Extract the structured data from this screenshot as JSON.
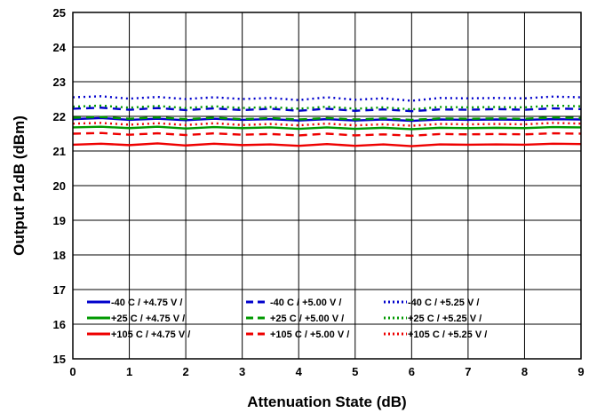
{
  "chart_data": {
    "type": "line",
    "title": "",
    "xlabel": "Attenuation State (dB)",
    "ylabel": "Output P1dB (dBm)",
    "xlim": [
      0,
      9
    ],
    "ylim": [
      15,
      25
    ],
    "x_ticks": [
      "0",
      "1",
      "2",
      "3",
      "4",
      "5",
      "6",
      "7",
      "8",
      "9"
    ],
    "y_ticks": [
      "15",
      "16",
      "17",
      "18",
      "19",
      "20",
      "21",
      "22",
      "23",
      "24",
      "25"
    ],
    "grid": true,
    "legend_position": "bottom-left",
    "series": [
      {
        "name": "-40 C / +4.75 V /",
        "color": "#0000cc",
        "style": "solid",
        "x": [
          0,
          0.5,
          1,
          1.5,
          2,
          2.5,
          3,
          3.5,
          4,
          4.5,
          5,
          5.5,
          6,
          6.5,
          7,
          7.5,
          8,
          8.5,
          9
        ],
        "values": [
          21.92,
          21.95,
          21.9,
          21.93,
          21.89,
          21.93,
          21.9,
          21.92,
          21.88,
          21.92,
          21.88,
          21.91,
          21.87,
          21.91,
          21.9,
          21.91,
          21.9,
          21.92,
          21.91
        ]
      },
      {
        "name": "-40 C / +5.00 V /",
        "color": "#0000cc",
        "style": "dashed",
        "x": [
          0,
          0.5,
          1,
          1.5,
          2,
          2.5,
          3,
          3.5,
          4,
          4.5,
          5,
          5.5,
          6,
          6.5,
          7,
          7.5,
          8,
          8.5,
          9
        ],
        "values": [
          22.22,
          22.25,
          22.19,
          22.24,
          22.18,
          22.23,
          22.18,
          22.22,
          22.16,
          22.22,
          22.16,
          22.2,
          22.15,
          22.2,
          22.19,
          22.21,
          22.19,
          22.23,
          22.21
        ]
      },
      {
        "name": "-40 C / +5.25 V /",
        "color": "#0000cc",
        "style": "dotted",
        "x": [
          0,
          0.5,
          1,
          1.5,
          2,
          2.5,
          3,
          3.5,
          4,
          4.5,
          5,
          5.5,
          6,
          6.5,
          7,
          7.5,
          8,
          8.5,
          9
        ],
        "values": [
          22.55,
          22.58,
          22.51,
          22.56,
          22.5,
          22.55,
          22.5,
          22.53,
          22.47,
          22.55,
          22.48,
          22.52,
          22.45,
          22.53,
          22.52,
          22.53,
          22.52,
          22.57,
          22.55
        ]
      },
      {
        "name": "+25 C / +4.75 V /",
        "color": "#009900",
        "style": "solid",
        "x": [
          0,
          0.5,
          1,
          1.5,
          2,
          2.5,
          3,
          3.5,
          4,
          4.5,
          5,
          5.5,
          6,
          6.5,
          7,
          7.5,
          8,
          8.5,
          9
        ],
        "values": [
          21.68,
          21.7,
          21.66,
          21.7,
          21.65,
          21.69,
          21.66,
          21.68,
          21.64,
          21.68,
          21.64,
          21.67,
          21.63,
          21.67,
          21.66,
          21.67,
          21.66,
          21.69,
          21.68
        ]
      },
      {
        "name": "+25 C / +5.00 V /",
        "color": "#009900",
        "style": "dashed",
        "x": [
          0,
          0.5,
          1,
          1.5,
          2,
          2.5,
          3,
          3.5,
          4,
          4.5,
          5,
          5.5,
          6,
          6.5,
          7,
          7.5,
          8,
          8.5,
          9
        ],
        "values": [
          21.96,
          21.98,
          21.93,
          21.97,
          21.92,
          21.96,
          21.92,
          21.95,
          21.91,
          21.95,
          21.91,
          21.94,
          21.9,
          21.94,
          21.93,
          21.94,
          21.93,
          21.97,
          21.95
        ]
      },
      {
        "name": "+25 C / +5.25 V /",
        "color": "#009900",
        "style": "dotted",
        "x": [
          0,
          0.5,
          1,
          1.5,
          2,
          2.5,
          3,
          3.5,
          4,
          4.5,
          5,
          5.5,
          6,
          6.5,
          7,
          7.5,
          8,
          8.5,
          9
        ],
        "values": [
          22.28,
          22.31,
          22.25,
          22.3,
          22.24,
          22.29,
          22.24,
          22.27,
          22.22,
          22.28,
          22.22,
          22.26,
          22.2,
          22.27,
          22.26,
          22.27,
          22.26,
          22.31,
          22.29
        ]
      },
      {
        "name": "+105 C / +4.75 V /",
        "color": "#ee0000",
        "style": "solid",
        "x": [
          0,
          0.5,
          1,
          1.5,
          2,
          2.5,
          3,
          3.5,
          4,
          4.5,
          5,
          5.5,
          6,
          6.5,
          7,
          7.5,
          8,
          8.5,
          9
        ],
        "values": [
          21.18,
          21.21,
          21.17,
          21.22,
          21.16,
          21.21,
          21.17,
          21.19,
          21.15,
          21.2,
          21.15,
          21.19,
          21.14,
          21.19,
          21.18,
          21.19,
          21.18,
          21.21,
          21.2
        ]
      },
      {
        "name": "+105 C / +5.00 V /",
        "color": "#ee0000",
        "style": "dashed",
        "x": [
          0,
          0.5,
          1,
          1.5,
          2,
          2.5,
          3,
          3.5,
          4,
          4.5,
          5,
          5.5,
          6,
          6.5,
          7,
          7.5,
          8,
          8.5,
          9
        ],
        "values": [
          21.5,
          21.52,
          21.47,
          21.51,
          21.46,
          21.51,
          21.47,
          21.49,
          21.45,
          21.5,
          21.45,
          21.48,
          21.44,
          21.49,
          21.48,
          21.49,
          21.48,
          21.51,
          21.5
        ]
      },
      {
        "name": "+105 C / +5.25 V /",
        "color": "#ee0000",
        "style": "dotted",
        "x": [
          0,
          0.5,
          1,
          1.5,
          2,
          2.5,
          3,
          3.5,
          4,
          4.5,
          5,
          5.5,
          6,
          6.5,
          7,
          7.5,
          8,
          8.5,
          9
        ],
        "values": [
          21.79,
          21.81,
          21.76,
          21.8,
          21.75,
          21.8,
          21.75,
          21.78,
          21.74,
          21.79,
          21.74,
          21.77,
          21.73,
          21.78,
          21.77,
          21.78,
          21.77,
          21.81,
          21.79
        ]
      }
    ]
  }
}
